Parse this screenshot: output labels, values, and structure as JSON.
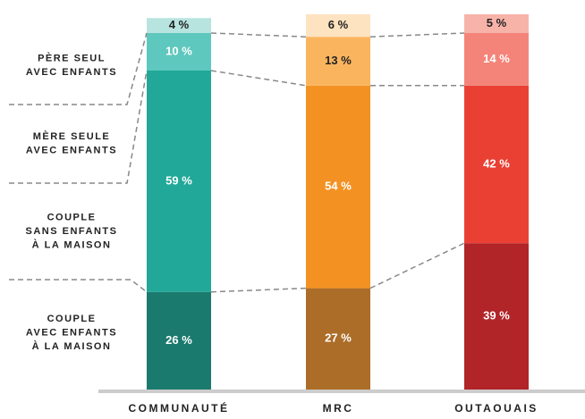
{
  "chart_data": {
    "type": "stacked_bar",
    "categories": [
      "COMMUNAUTÉ",
      "MRC",
      "OUTAOUAIS"
    ],
    "ylim": [
      0,
      100
    ],
    "series": [
      {
        "name": [
          "COUPLE",
          "AVEC ENFANTS",
          "À LA MAISON"
        ],
        "colors": [
          "#1b7a6e",
          "#ac6d28",
          "#b12428"
        ],
        "values": [
          26,
          27,
          39
        ],
        "value_labels": [
          "26 %",
          "27 %",
          "39 %"
        ]
      },
      {
        "name": [
          "COUPLE",
          "SANS ENFANTS",
          "À LA MAISON"
        ],
        "colors": [
          "#21a898",
          "#f39222",
          "#ea4034"
        ],
        "values": [
          59,
          54,
          42
        ],
        "value_labels": [
          "59 %",
          "54 %",
          "42 %"
        ]
      },
      {
        "name": [
          "MÈRE SEULE",
          "AVEC ENFANTS"
        ],
        "colors": [
          "#5ec8be",
          "#fbb45e",
          "#f48479"
        ],
        "values": [
          10,
          13,
          14
        ],
        "value_labels": [
          "10 %",
          "13 %",
          "14 %"
        ]
      },
      {
        "name": [
          "PÈRE SEUL",
          "AVEC ENFANTS"
        ],
        "colors": [
          "#b8e4e0",
          "#fde3bf",
          "#f8b3a9"
        ],
        "values": [
          4,
          6,
          5
        ],
        "value_labels": [
          "4 %",
          "6 %",
          "5 %"
        ]
      }
    ]
  }
}
